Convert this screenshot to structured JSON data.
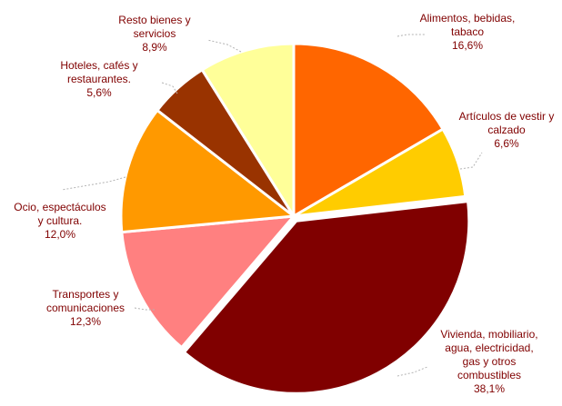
{
  "chart_data": {
    "type": "pie",
    "title": "",
    "unit": "%",
    "label_color": "#800000",
    "slices": [
      {
        "label_lines": [
          "Alimentos, bebidas,",
          "tabaco"
        ],
        "value_text": "16,6%",
        "value": 16.6,
        "color": "#ff6600"
      },
      {
        "label_lines": [
          "Artículos de vestir y",
          "calzado"
        ],
        "value_text": "6,6%",
        "value": 6.6,
        "color": "#ffcc00"
      },
      {
        "label_lines": [
          "Vivienda, mobiliario,",
          "agua, electricidad,",
          "gas y otros",
          "combustibles"
        ],
        "value_text": "38,1%",
        "value": 38.1,
        "color": "#800000"
      },
      {
        "label_lines": [
          "Transportes y",
          "comunicaciones"
        ],
        "value_text": "12,3%",
        "value": 12.3,
        "color": "#ff8080"
      },
      {
        "label_lines": [
          "Ocio, espectáculos",
          "y cultura."
        ],
        "value_text": "12,0%",
        "value": 12.0,
        "color": "#ff9900"
      },
      {
        "label_lines": [
          "Hoteles, cafés y",
          "restaurantes."
        ],
        "value_text": "5,6%",
        "value": 5.6,
        "color": "#993300"
      },
      {
        "label_lines": [
          "Resto bienes y",
          "servicios"
        ],
        "value_text": "8,9%",
        "value": 8.9,
        "color": "#ffff99"
      }
    ]
  }
}
